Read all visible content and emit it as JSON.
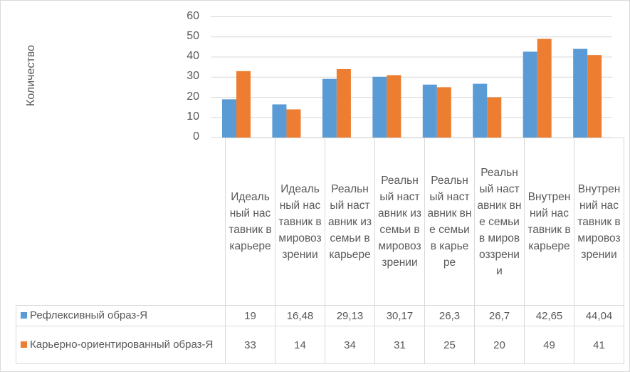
{
  "chart_data": {
    "type": "bar",
    "title": "",
    "xlabel": "",
    "ylabel": "Количество",
    "ylim": [
      0,
      60
    ],
    "yticks": [
      0,
      10,
      20,
      30,
      40,
      50,
      60
    ],
    "grid": true,
    "legend": "bottom-table",
    "categories": [
      "Идеальный наставник в карьере",
      "Идеальный наставник в мировоззрении",
      "Реальный наставник из семьи в карьере",
      "Реальный наставник из семьи в мировоззрении",
      "Реальный наставник вне семьи в карьере",
      "Реальный наставник вне семьи в мировоззрении",
      "Внутренний наставник в карьере",
      "Внутренний наставник в мировоззрении"
    ],
    "series": [
      {
        "name": "Рефлексивный образ-Я",
        "color": "#5b9bd5",
        "values": [
          19,
          16.48,
          29.13,
          30.17,
          26.3,
          26.7,
          42.65,
          44.04
        ],
        "labels": [
          "19",
          "16,48",
          "29,13",
          "30,17",
          "26,3",
          "26,7",
          "42,65",
          "44,04"
        ]
      },
      {
        "name": "Карьерно-ориентированный образ-Я",
        "color": "#ed7d31",
        "values": [
          33,
          14,
          34,
          31,
          25,
          20,
          49,
          41
        ],
        "labels": [
          "33",
          "14",
          "34",
          "31",
          "25",
          "20",
          "49",
          "41"
        ]
      }
    ]
  }
}
